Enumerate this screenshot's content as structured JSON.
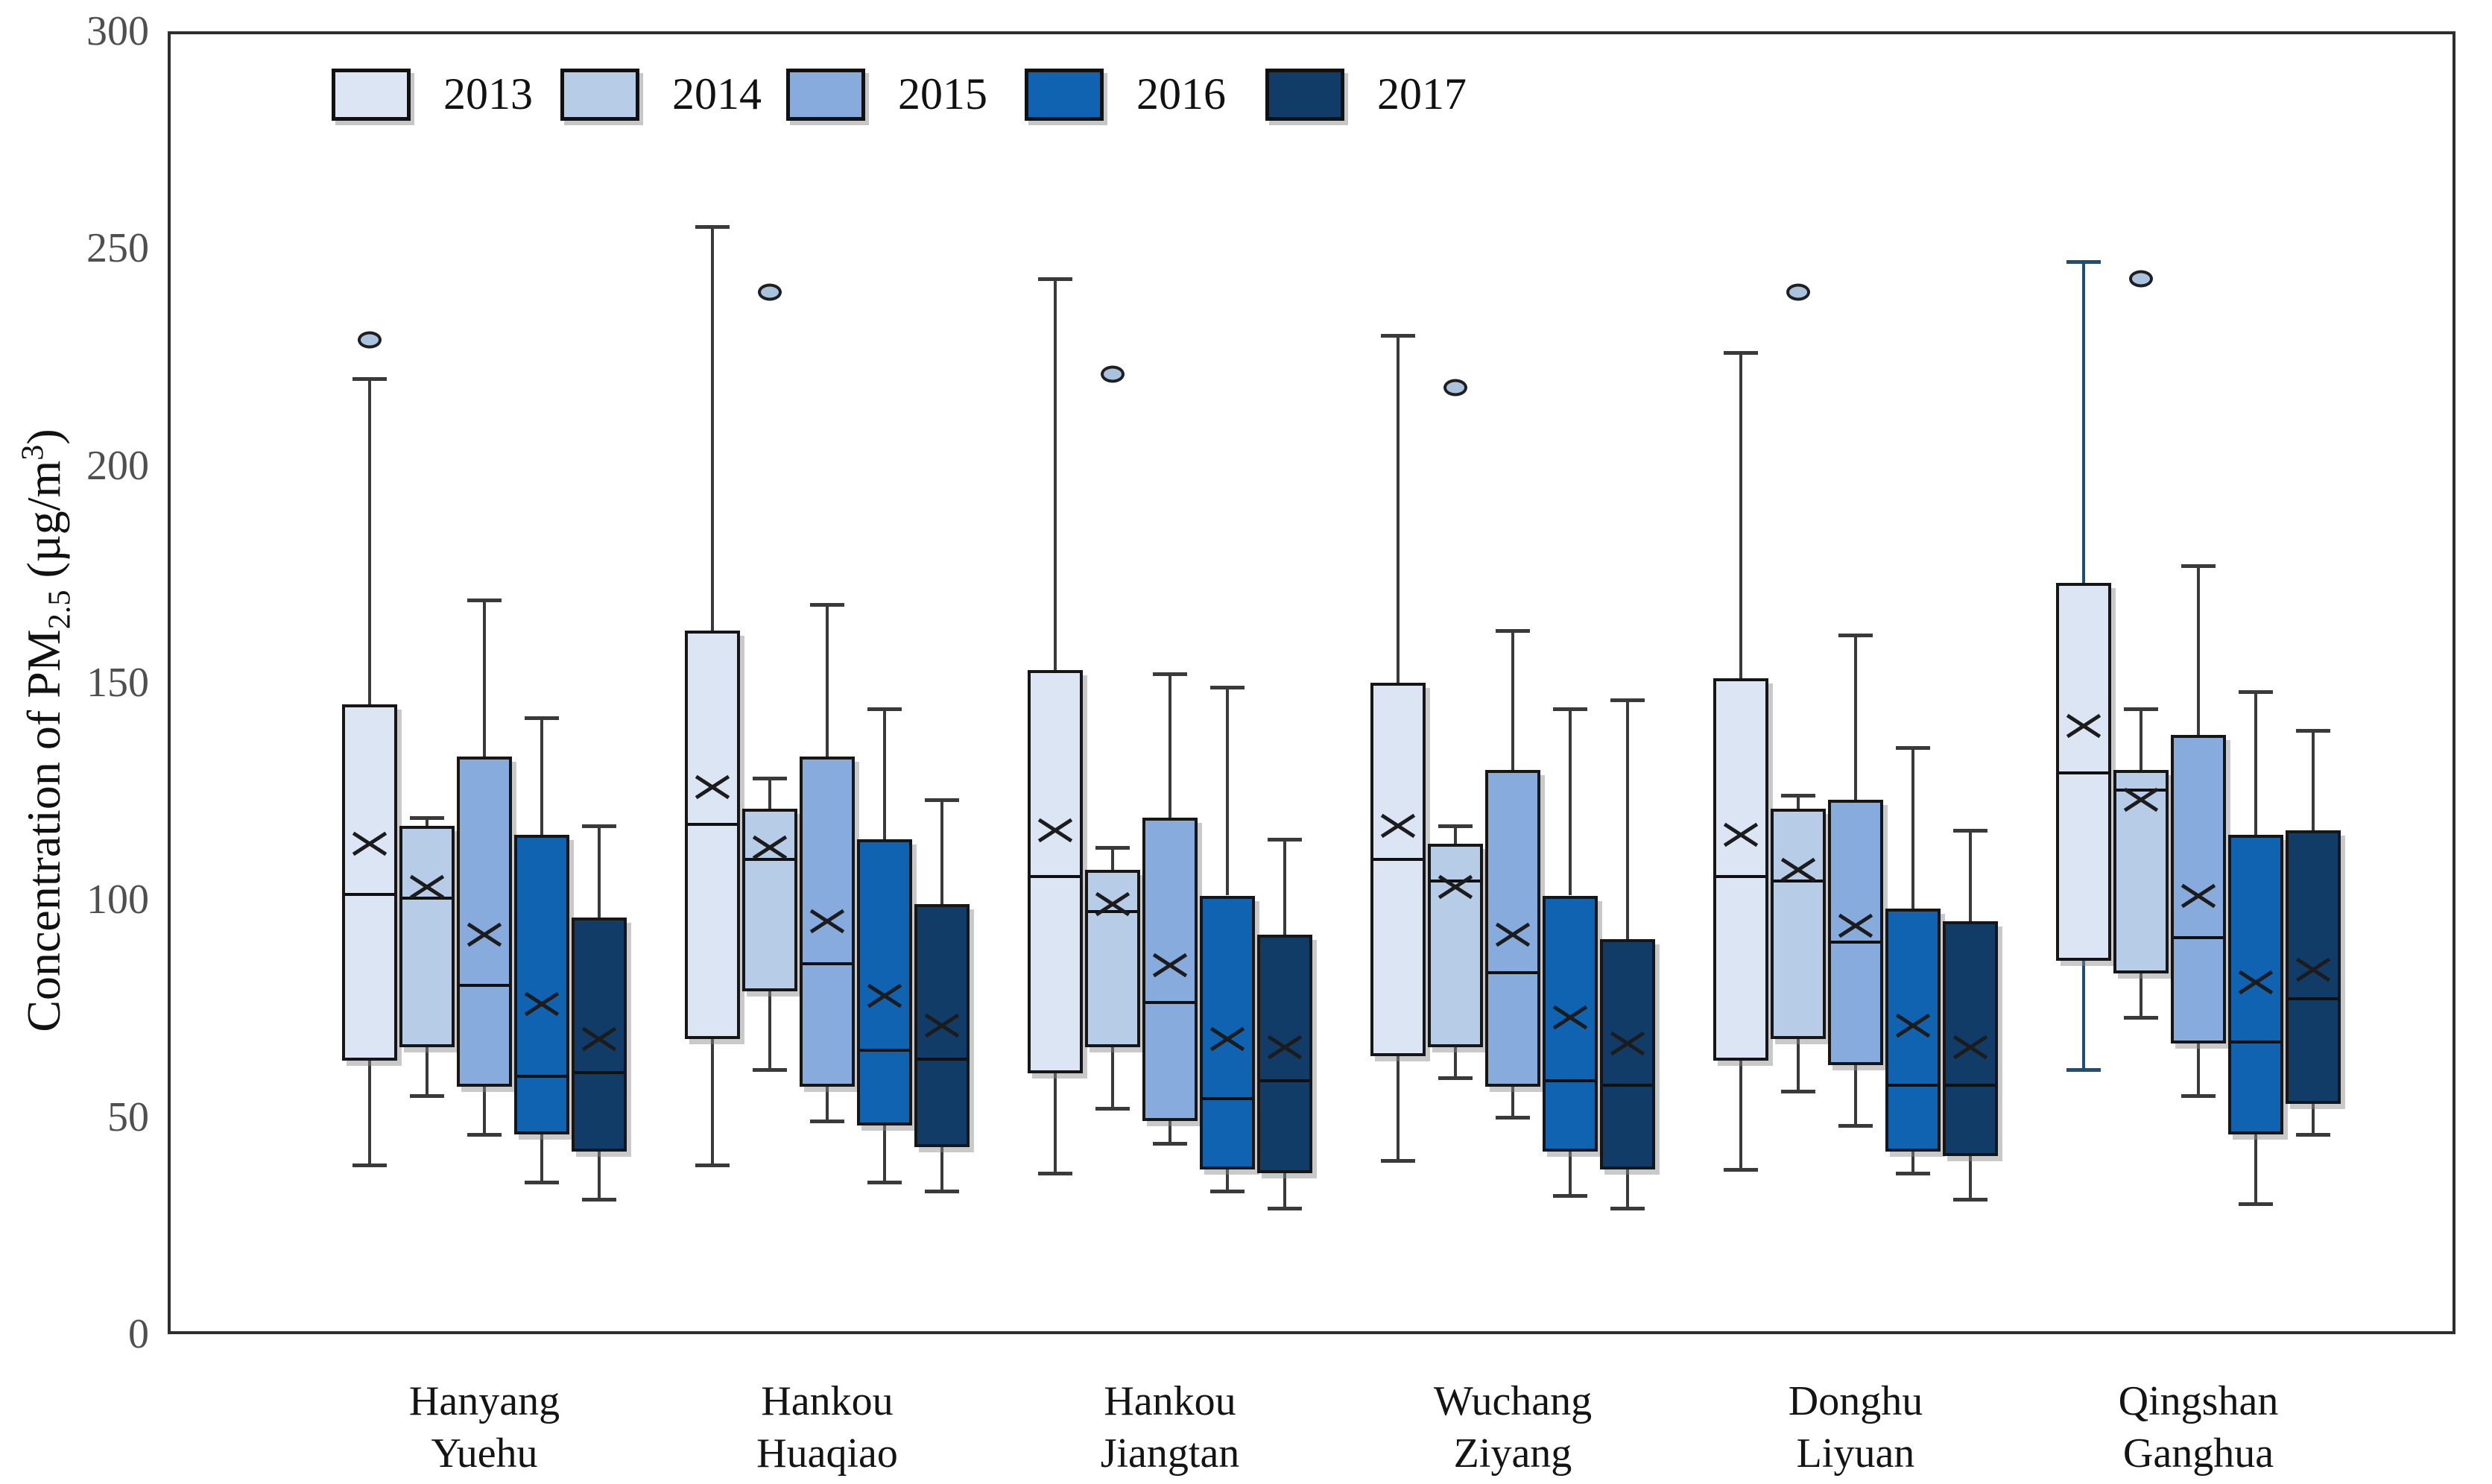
{
  "chart_data": {
    "type": "grouped_boxplot",
    "title": "",
    "ylabel_parts": {
      "prefix": "Concentration of PM",
      "sub": "2.5",
      "mid": " (µg/m",
      "sup": "3",
      "suffix": ")"
    },
    "ylim": [
      0,
      300
    ],
    "yticks": [
      0,
      50,
      100,
      150,
      200,
      250,
      300
    ],
    "grid": false,
    "legend_position": "top-left-inside",
    "series_years": [
      "2013",
      "2014",
      "2015",
      "2016",
      "2017"
    ],
    "year_colors": {
      "2013": "#dbe5f3",
      "2014": "#b7cce6",
      "2015": "#87abdc",
      "2016": "#0f63b0",
      "2017": "#123c68"
    },
    "outlier_fill": "#a9c3df",
    "groups": [
      {
        "name": [
          "Hanyang",
          "Yuehu"
        ],
        "boxes": [
          {
            "year": "2013",
            "whisker_low": 39,
            "q1": 63,
            "median": 102,
            "mean": 113,
            "q3": 145,
            "whisker_high": 220,
            "outliers": [
              229
            ]
          },
          {
            "year": "2014",
            "whisker_low": 55,
            "q1": 66,
            "median": 101,
            "mean": 103,
            "q3": 117,
            "whisker_high": 119,
            "outliers": []
          },
          {
            "year": "2015",
            "whisker_low": 46,
            "q1": 57,
            "median": 81,
            "mean": 92,
            "q3": 133,
            "whisker_high": 169,
            "outliers": []
          },
          {
            "year": "2016",
            "whisker_low": 35,
            "q1": 46,
            "median": 60,
            "mean": 76,
            "q3": 115,
            "whisker_high": 142,
            "outliers": []
          },
          {
            "year": "2017",
            "whisker_low": 31,
            "q1": 42,
            "median": 61,
            "mean": 68,
            "q3": 96,
            "whisker_high": 117,
            "outliers": []
          }
        ]
      },
      {
        "name": [
          "Hankou",
          "Huaqiao"
        ],
        "boxes": [
          {
            "year": "2013",
            "whisker_low": 39,
            "q1": 68,
            "median": 118,
            "mean": 126,
            "q3": 162,
            "whisker_high": 255,
            "outliers": []
          },
          {
            "year": "2014",
            "whisker_low": 61,
            "q1": 79,
            "median": 110,
            "mean": 112,
            "q3": 121,
            "whisker_high": 128,
            "outliers": [
              240
            ]
          },
          {
            "year": "2015",
            "whisker_low": 49,
            "q1": 57,
            "median": 86,
            "mean": 95,
            "q3": 133,
            "whisker_high": 168,
            "outliers": []
          },
          {
            "year": "2016",
            "whisker_low": 35,
            "q1": 48,
            "median": 66,
            "mean": 78,
            "q3": 114,
            "whisker_high": 144,
            "outliers": []
          },
          {
            "year": "2017",
            "whisker_low": 33,
            "q1": 43,
            "median": 64,
            "mean": 71,
            "q3": 99,
            "whisker_high": 123,
            "outliers": []
          }
        ]
      },
      {
        "name": [
          "Hankou",
          "Jiangtan"
        ],
        "boxes": [
          {
            "year": "2013",
            "whisker_low": 37,
            "q1": 60,
            "median": 106,
            "mean": 116,
            "q3": 153,
            "whisker_high": 243,
            "outliers": []
          },
          {
            "year": "2014",
            "whisker_low": 52,
            "q1": 66,
            "median": 98,
            "mean": 99,
            "q3": 107,
            "whisker_high": 112,
            "outliers": [
              221
            ]
          },
          {
            "year": "2015",
            "whisker_low": 44,
            "q1": 49,
            "median": 77,
            "mean": 85,
            "q3": 119,
            "whisker_high": 152,
            "outliers": []
          },
          {
            "year": "2016",
            "whisker_low": 33,
            "q1": 38,
            "median": 55,
            "mean": 68,
            "q3": 101,
            "whisker_high": 149,
            "outliers": []
          },
          {
            "year": "2017",
            "whisker_low": 29,
            "q1": 37,
            "median": 59,
            "mean": 66,
            "q3": 92,
            "whisker_high": 114,
            "outliers": []
          }
        ]
      },
      {
        "name": [
          "Wuchang",
          "Ziyang"
        ],
        "boxes": [
          {
            "year": "2013",
            "whisker_low": 40,
            "q1": 64,
            "median": 110,
            "mean": 117,
            "q3": 150,
            "whisker_high": 230,
            "outliers": []
          },
          {
            "year": "2014",
            "whisker_low": 59,
            "q1": 66,
            "median": 105,
            "mean": 103,
            "q3": 113,
            "whisker_high": 117,
            "outliers": [
              218
            ]
          },
          {
            "year": "2015",
            "whisker_low": 50,
            "q1": 57,
            "median": 84,
            "mean": 92,
            "q3": 130,
            "whisker_high": 162,
            "outliers": []
          },
          {
            "year": "2016",
            "whisker_low": 32,
            "q1": 42,
            "median": 59,
            "mean": 73,
            "q3": 101,
            "whisker_high": 144,
            "outliers": []
          },
          {
            "year": "2017",
            "whisker_low": 29,
            "q1": 38,
            "median": 58,
            "mean": 67,
            "q3": 91,
            "whisker_high": 146,
            "outliers": []
          }
        ]
      },
      {
        "name": [
          "Donghu",
          "Liyuan"
        ],
        "boxes": [
          {
            "year": "2013",
            "whisker_low": 38,
            "q1": 63,
            "median": 106,
            "mean": 115,
            "q3": 151,
            "whisker_high": 226,
            "outliers": []
          },
          {
            "year": "2014",
            "whisker_low": 56,
            "q1": 68,
            "median": 105,
            "mean": 107,
            "q3": 121,
            "whisker_high": 124,
            "outliers": [
              240
            ]
          },
          {
            "year": "2015",
            "whisker_low": 48,
            "q1": 62,
            "median": 91,
            "mean": 94,
            "q3": 123,
            "whisker_high": 161,
            "outliers": []
          },
          {
            "year": "2016",
            "whisker_low": 37,
            "q1": 42,
            "median": 58,
            "mean": 71,
            "q3": 98,
            "whisker_high": 135,
            "outliers": []
          },
          {
            "year": "2017",
            "whisker_low": 31,
            "q1": 41,
            "median": 58,
            "mean": 66,
            "q3": 95,
            "whisker_high": 116,
            "outliers": []
          }
        ]
      },
      {
        "name": [
          "Qingshan",
          "Ganghua"
        ],
        "boxes": [
          {
            "year": "2013",
            "whisker_low": 61,
            "q1": 86,
            "median": 130,
            "mean": 140,
            "q3": 173,
            "whisker_high": 247,
            "outliers": [],
            "whisker_color": "#1f4e79"
          },
          {
            "year": "2014",
            "whisker_low": 73,
            "q1": 83,
            "median": 126,
            "mean": 123,
            "q3": 130,
            "whisker_high": 144,
            "outliers": [
              243
            ]
          },
          {
            "year": "2015",
            "whisker_low": 55,
            "q1": 67,
            "median": 92,
            "mean": 101,
            "q3": 138,
            "whisker_high": 177,
            "outliers": []
          },
          {
            "year": "2016",
            "whisker_low": 30,
            "q1": 46,
            "median": 68,
            "mean": 81,
            "q3": 115,
            "whisker_high": 148,
            "outliers": []
          },
          {
            "year": "2017",
            "whisker_low": 46,
            "q1": 53,
            "median": 78,
            "mean": 84,
            "q3": 116,
            "whisker_high": 139,
            "outliers": []
          }
        ]
      }
    ]
  }
}
